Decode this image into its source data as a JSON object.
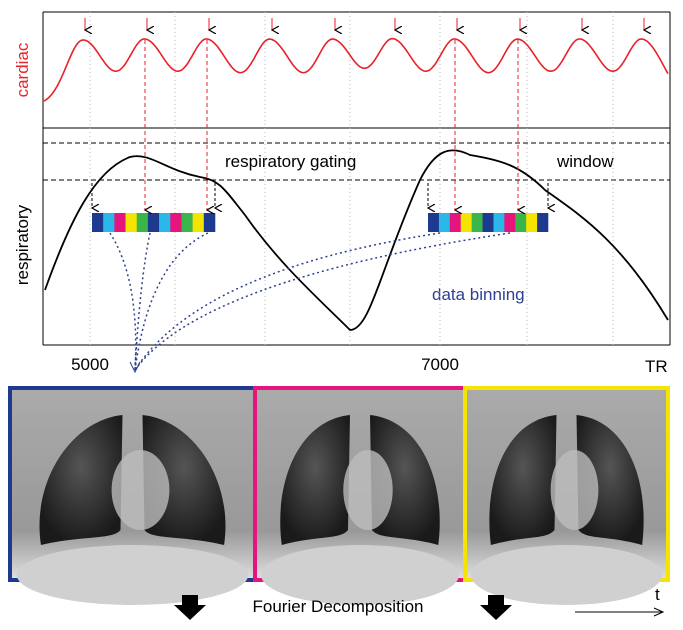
{
  "labels": {
    "cardiac": "cardiac",
    "respiratory": "respiratory",
    "gating": "respiratory gating",
    "window": "window",
    "binning": "data binning",
    "tick1": "5000",
    "tick2": "7000",
    "axis": "TR",
    "fourier": "Fourier Decomposition",
    "time": "t"
  }
}
